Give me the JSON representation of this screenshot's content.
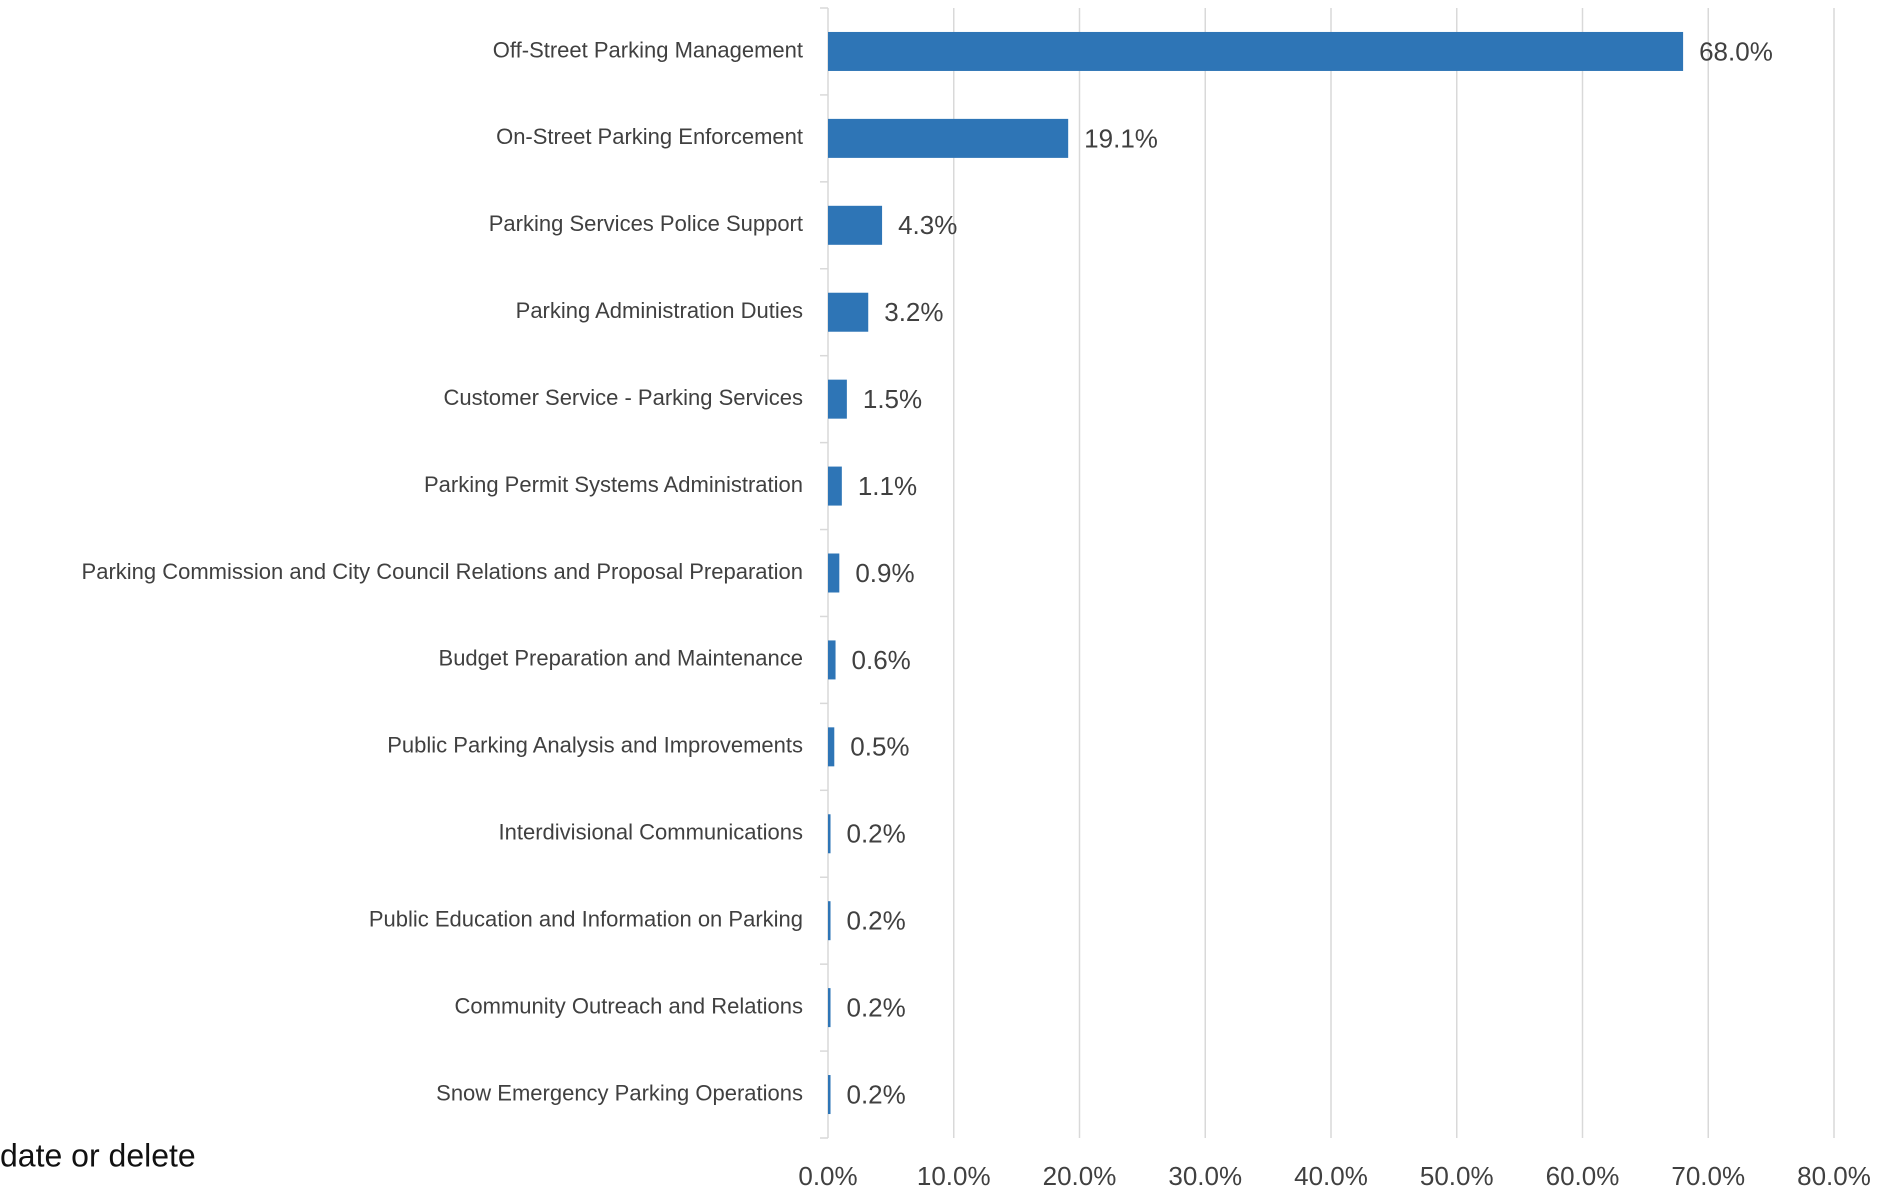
{
  "chart_data": {
    "type": "hbar",
    "categories": [
      "Off-Street Parking Management",
      "On-Street Parking Enforcement",
      "Parking Services Police Support",
      "Parking Administration Duties",
      "Customer Service - Parking Services",
      "Parking Permit Systems Administration",
      "Parking Commission and City Council Relations and Proposal Preparation",
      "Budget Preparation and Maintenance",
      "Public Parking Analysis and Improvements",
      "Interdivisional Communications",
      "Public Education and Information on Parking",
      "Community Outreach and Relations",
      "Snow Emergency Parking Operations"
    ],
    "values": [
      68.0,
      19.1,
      4.3,
      3.2,
      1.5,
      1.1,
      0.9,
      0.6,
      0.5,
      0.2,
      0.2,
      0.2,
      0.2
    ],
    "value_labels": [
      "68.0%",
      "19.1%",
      "4.3%",
      "3.2%",
      "1.5%",
      "1.1%",
      "0.9%",
      "0.6%",
      "0.5%",
      "0.2%",
      "0.2%",
      "0.2%",
      "0.2%"
    ],
    "color": "#2e75b6",
    "xlim": [
      0,
      80
    ],
    "xticks": [
      {
        "value": 0,
        "label": "0.0%"
      },
      {
        "value": 10,
        "label": "10.0%"
      },
      {
        "value": 20,
        "label": "20.0%"
      },
      {
        "value": 30,
        "label": "30.0%"
      },
      {
        "value": 40,
        "label": "40.0%"
      },
      {
        "value": 50,
        "label": "50.0%"
      },
      {
        "value": 60,
        "label": "60.0%"
      },
      {
        "value": 70,
        "label": "70.0%"
      },
      {
        "value": 80,
        "label": "80.0%"
      }
    ],
    "grid": true,
    "annotation": "date or delete"
  }
}
